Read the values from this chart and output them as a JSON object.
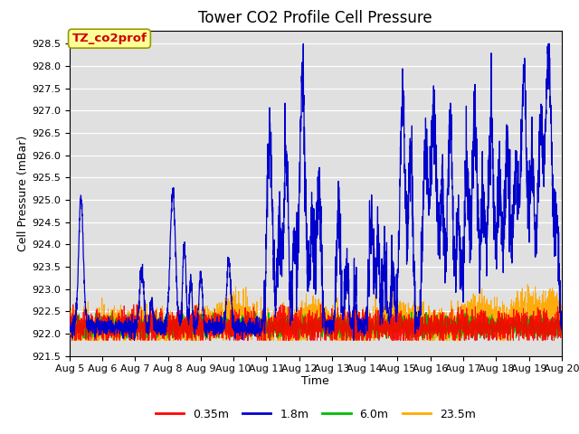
{
  "title": "Tower CO2 Profile Cell Pressure",
  "xlabel": "Time",
  "ylabel": "Cell Pressure (mBar)",
  "ylim": [
    921.5,
    928.8
  ],
  "xlim": [
    0,
    15
  ],
  "x_tick_labels": [
    "Aug 5",
    "Aug 6",
    "Aug 7",
    "Aug 8",
    "Aug 9",
    "Aug 10",
    "Aug 11",
    "Aug 12",
    "Aug 13",
    "Aug 14",
    "Aug 15",
    "Aug 16",
    "Aug 17",
    "Aug 18",
    "Aug 19",
    "Aug 20"
  ],
  "yticks": [
    921.5,
    922.0,
    922.5,
    923.0,
    923.5,
    924.0,
    924.5,
    925.0,
    925.5,
    926.0,
    926.5,
    927.0,
    927.5,
    928.0,
    928.5
  ],
  "legend_labels": [
    "0.35m",
    "1.8m",
    "6.0m",
    "23.5m"
  ],
  "legend_colors": [
    "#ff0000",
    "#0000cc",
    "#00bb00",
    "#ffaa00"
  ],
  "annotation_text": "TZ_co2prof",
  "annotation_color": "#cc0000",
  "annotation_bg": "#ffff99",
  "bg_color": "#e0e0e0",
  "title_fontsize": 12,
  "axis_fontsize": 9,
  "tick_fontsize": 8,
  "legend_fontsize": 9
}
